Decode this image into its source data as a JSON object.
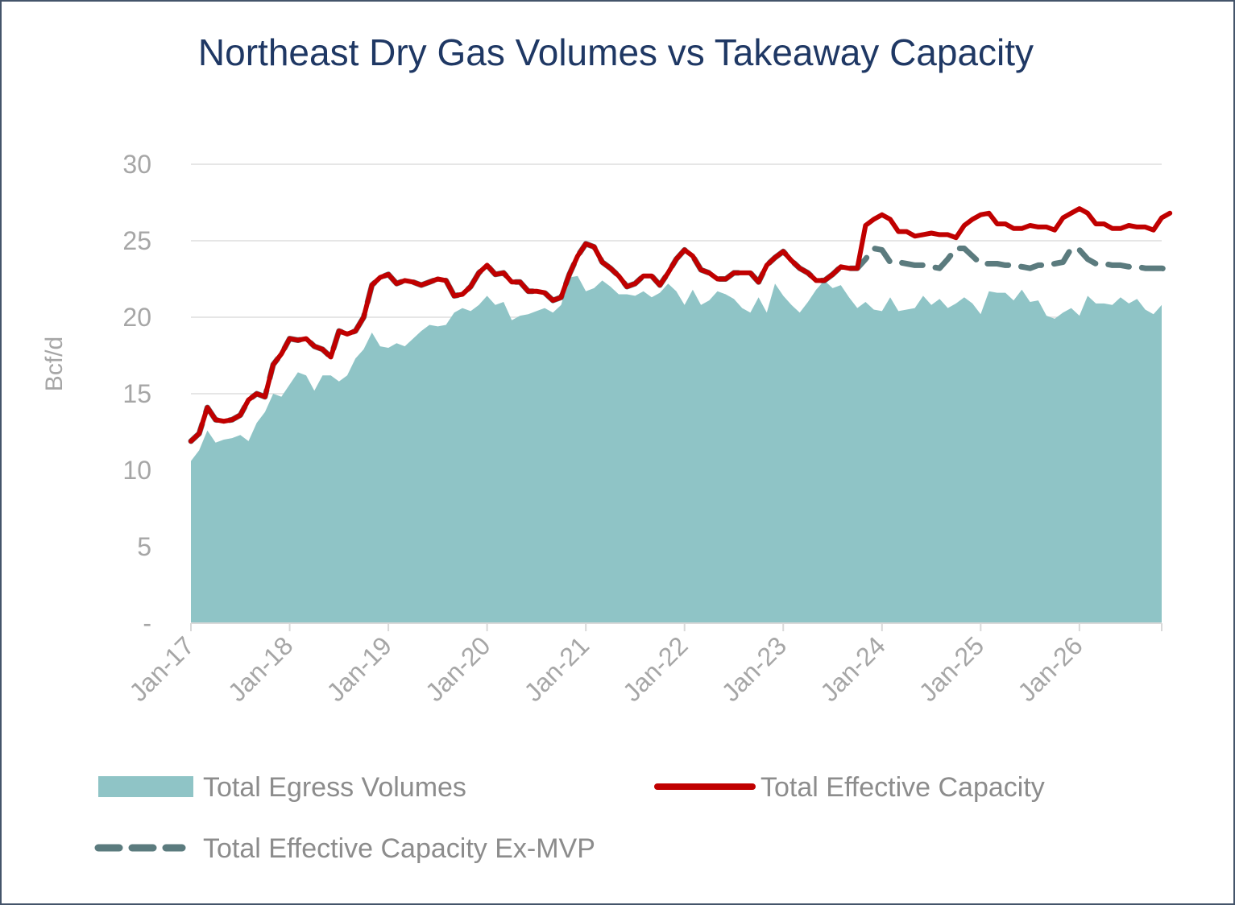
{
  "chart_data": {
    "type": "area",
    "title": "Northeast Dry Gas Volumes vs Takeaway Capacity",
    "ylabel": "Bcf/d",
    "xlabel": "",
    "ylim": [
      0,
      30
    ],
    "yticks": [
      "-",
      "5",
      "10",
      "15",
      "20",
      "25",
      "30"
    ],
    "x_tick_labels": [
      "Jan-17",
      "Jan-18",
      "Jan-19",
      "Jan-20",
      "Jan-21",
      "Jan-22",
      "Jan-23",
      "Jan-24",
      "Jan-25",
      "Jan-26"
    ],
    "grid": "horizontal",
    "legend_position": "bottom",
    "x_start": "Jan-17",
    "x_end": "Dec-26",
    "series": [
      {
        "name": "Total Egress Volumes",
        "style": "area",
        "color": "#8fc4c6",
        "values": [
          10.6,
          11.3,
          12.6,
          11.8,
          12.0,
          12.1,
          12.3,
          11.9,
          13.1,
          13.8,
          15.0,
          14.8,
          15.6,
          16.4,
          16.2,
          15.2,
          16.2,
          16.2,
          15.8,
          16.2,
          17.3,
          17.9,
          19.0,
          18.1,
          18.0,
          18.3,
          18.1,
          18.6,
          19.1,
          19.5,
          19.4,
          19.5,
          20.3,
          20.6,
          20.4,
          20.8,
          21.4,
          20.8,
          21.0,
          19.8,
          20.1,
          20.2,
          20.4,
          20.6,
          20.3,
          20.8,
          22.6,
          22.7,
          21.7,
          21.9,
          22.4,
          22.0,
          21.5,
          21.5,
          21.4,
          21.7,
          21.3,
          21.6,
          22.2,
          21.7,
          20.8,
          21.8,
          20.8,
          21.1,
          21.7,
          21.5,
          21.2,
          20.6,
          20.3,
          21.3,
          20.3,
          22.2,
          21.4,
          20.8,
          20.3,
          21.0,
          21.8,
          22.4,
          21.9,
          22.1,
          21.3,
          20.6,
          21.0,
          20.5,
          20.4,
          21.3,
          20.4,
          20.5,
          20.6,
          21.4,
          20.8,
          21.2,
          20.6,
          20.9,
          21.3,
          20.9,
          20.2,
          21.7,
          21.6,
          21.6,
          21.1,
          21.8,
          21.0,
          21.1,
          20.1,
          19.9,
          20.3,
          20.6,
          20.1,
          21.4,
          20.9,
          20.9,
          20.8,
          21.3,
          20.9,
          21.2,
          20.5,
          20.2,
          20.8
        ]
      },
      {
        "name": "Total Effective Capacity Ex-MVP",
        "style": "dashed",
        "color": "#5b7b7e",
        "values": [
          11.9,
          12.4,
          14.1,
          13.3,
          13.2,
          13.3,
          13.6,
          14.6,
          15.0,
          14.8,
          16.9,
          17.6,
          18.6,
          18.5,
          18.6,
          18.1,
          17.9,
          17.4,
          19.1,
          18.9,
          19.1,
          20.0,
          22.1,
          22.6,
          22.8,
          22.2,
          22.4,
          22.3,
          22.1,
          22.3,
          22.5,
          22.4,
          21.4,
          21.5,
          22.0,
          22.9,
          23.4,
          22.8,
          22.9,
          22.3,
          22.3,
          21.7,
          21.7,
          21.6,
          21.1,
          21.3,
          22.8,
          24.0,
          24.8,
          24.6,
          23.6,
          23.2,
          22.7,
          22.0,
          22.2,
          22.7,
          22.7,
          22.1,
          22.9,
          23.8,
          24.4,
          24.0,
          23.1,
          22.9,
          22.5,
          22.5,
          22.9,
          22.9,
          22.9,
          22.3,
          23.4,
          23.9,
          24.3,
          23.7,
          23.2,
          22.9,
          22.4,
          22.4,
          22.8,
          23.3,
          23.2,
          23.2,
          23.8,
          24.5,
          24.4,
          23.6,
          23.6,
          23.5,
          23.4,
          23.4,
          23.3,
          23.2,
          23.8,
          24.5,
          24.5,
          24.0,
          23.5,
          23.5,
          23.5,
          23.4,
          23.4,
          23.3,
          23.2,
          23.4,
          23.4,
          23.5,
          23.6,
          24.5,
          24.4,
          23.8,
          23.5,
          23.5,
          23.4,
          23.4,
          23.3,
          23.3,
          23.2,
          23.2,
          23.2,
          23.1
        ]
      },
      {
        "name": "Total Effective Capacity",
        "style": "line",
        "color": "#c00000",
        "values": [
          11.9,
          12.4,
          14.1,
          13.3,
          13.2,
          13.3,
          13.6,
          14.6,
          15.0,
          14.8,
          16.9,
          17.6,
          18.6,
          18.5,
          18.6,
          18.1,
          17.9,
          17.4,
          19.1,
          18.9,
          19.1,
          20.0,
          22.1,
          22.6,
          22.8,
          22.2,
          22.4,
          22.3,
          22.1,
          22.3,
          22.5,
          22.4,
          21.4,
          21.5,
          22.0,
          22.9,
          23.4,
          22.8,
          22.9,
          22.3,
          22.3,
          21.7,
          21.7,
          21.6,
          21.1,
          21.3,
          22.8,
          24.0,
          24.8,
          24.6,
          23.6,
          23.2,
          22.7,
          22.0,
          22.2,
          22.7,
          22.7,
          22.1,
          22.9,
          23.8,
          24.4,
          24.0,
          23.1,
          22.9,
          22.5,
          22.5,
          22.9,
          22.9,
          22.9,
          22.3,
          23.4,
          23.9,
          24.3,
          23.7,
          23.2,
          22.9,
          22.4,
          22.4,
          22.8,
          23.3,
          23.2,
          23.2,
          26.0,
          26.4,
          26.7,
          26.4,
          25.6,
          25.6,
          25.3,
          25.4,
          25.5,
          25.4,
          25.4,
          25.2,
          26.0,
          26.4,
          26.7,
          26.8,
          26.1,
          26.1,
          25.8,
          25.8,
          26.0,
          25.9,
          25.9,
          25.7,
          26.5,
          26.8,
          27.1,
          26.8,
          26.1,
          26.1,
          25.8,
          25.8,
          26.0,
          25.9,
          25.9,
          25.7,
          26.5,
          26.8
        ]
      }
    ]
  }
}
